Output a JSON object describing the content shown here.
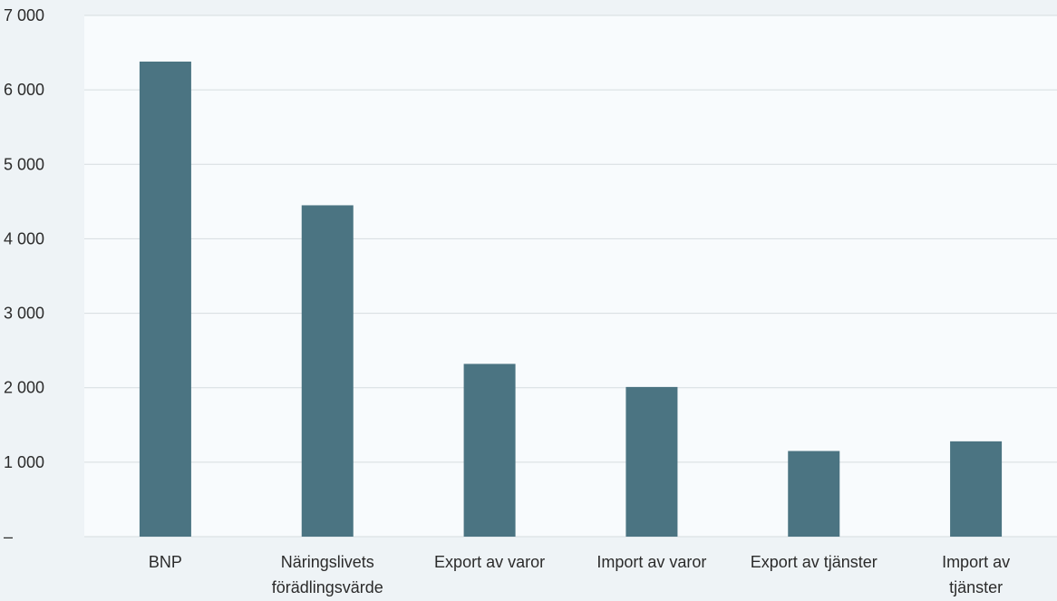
{
  "chart_data": {
    "type": "bar",
    "categories": [
      "BNP",
      "Näringslivets förädlingsvärde",
      "Export av varor",
      "Import av varor",
      "Export av tjänster",
      "Import av tjänster"
    ],
    "category_label_lines": [
      [
        "BNP"
      ],
      [
        "Näringslivets",
        "förädlingsvärde"
      ],
      [
        "Export av varor"
      ],
      [
        "Import av varor"
      ],
      [
        "Export av tjänster"
      ],
      [
        "Import av",
        "tjänster"
      ]
    ],
    "values": [
      6380,
      4450,
      2320,
      2010,
      1150,
      1280
    ],
    "ylim": [
      0,
      7000
    ],
    "yticks": [
      0,
      1000,
      2000,
      3000,
      4000,
      5000,
      6000,
      7000
    ],
    "ytick_labels": [
      "–",
      "1 000",
      "2 000",
      "3 000",
      "4 000",
      "5 000",
      "6 000",
      "7 000"
    ],
    "title": "",
    "xlabel": "",
    "ylabel": "",
    "grid": true,
    "legend": "none",
    "colors": {
      "bar": "#4b7482",
      "plot_background": "#f8fbfd",
      "page_background": "#eef3f6",
      "grid": "#d6dce0"
    }
  }
}
